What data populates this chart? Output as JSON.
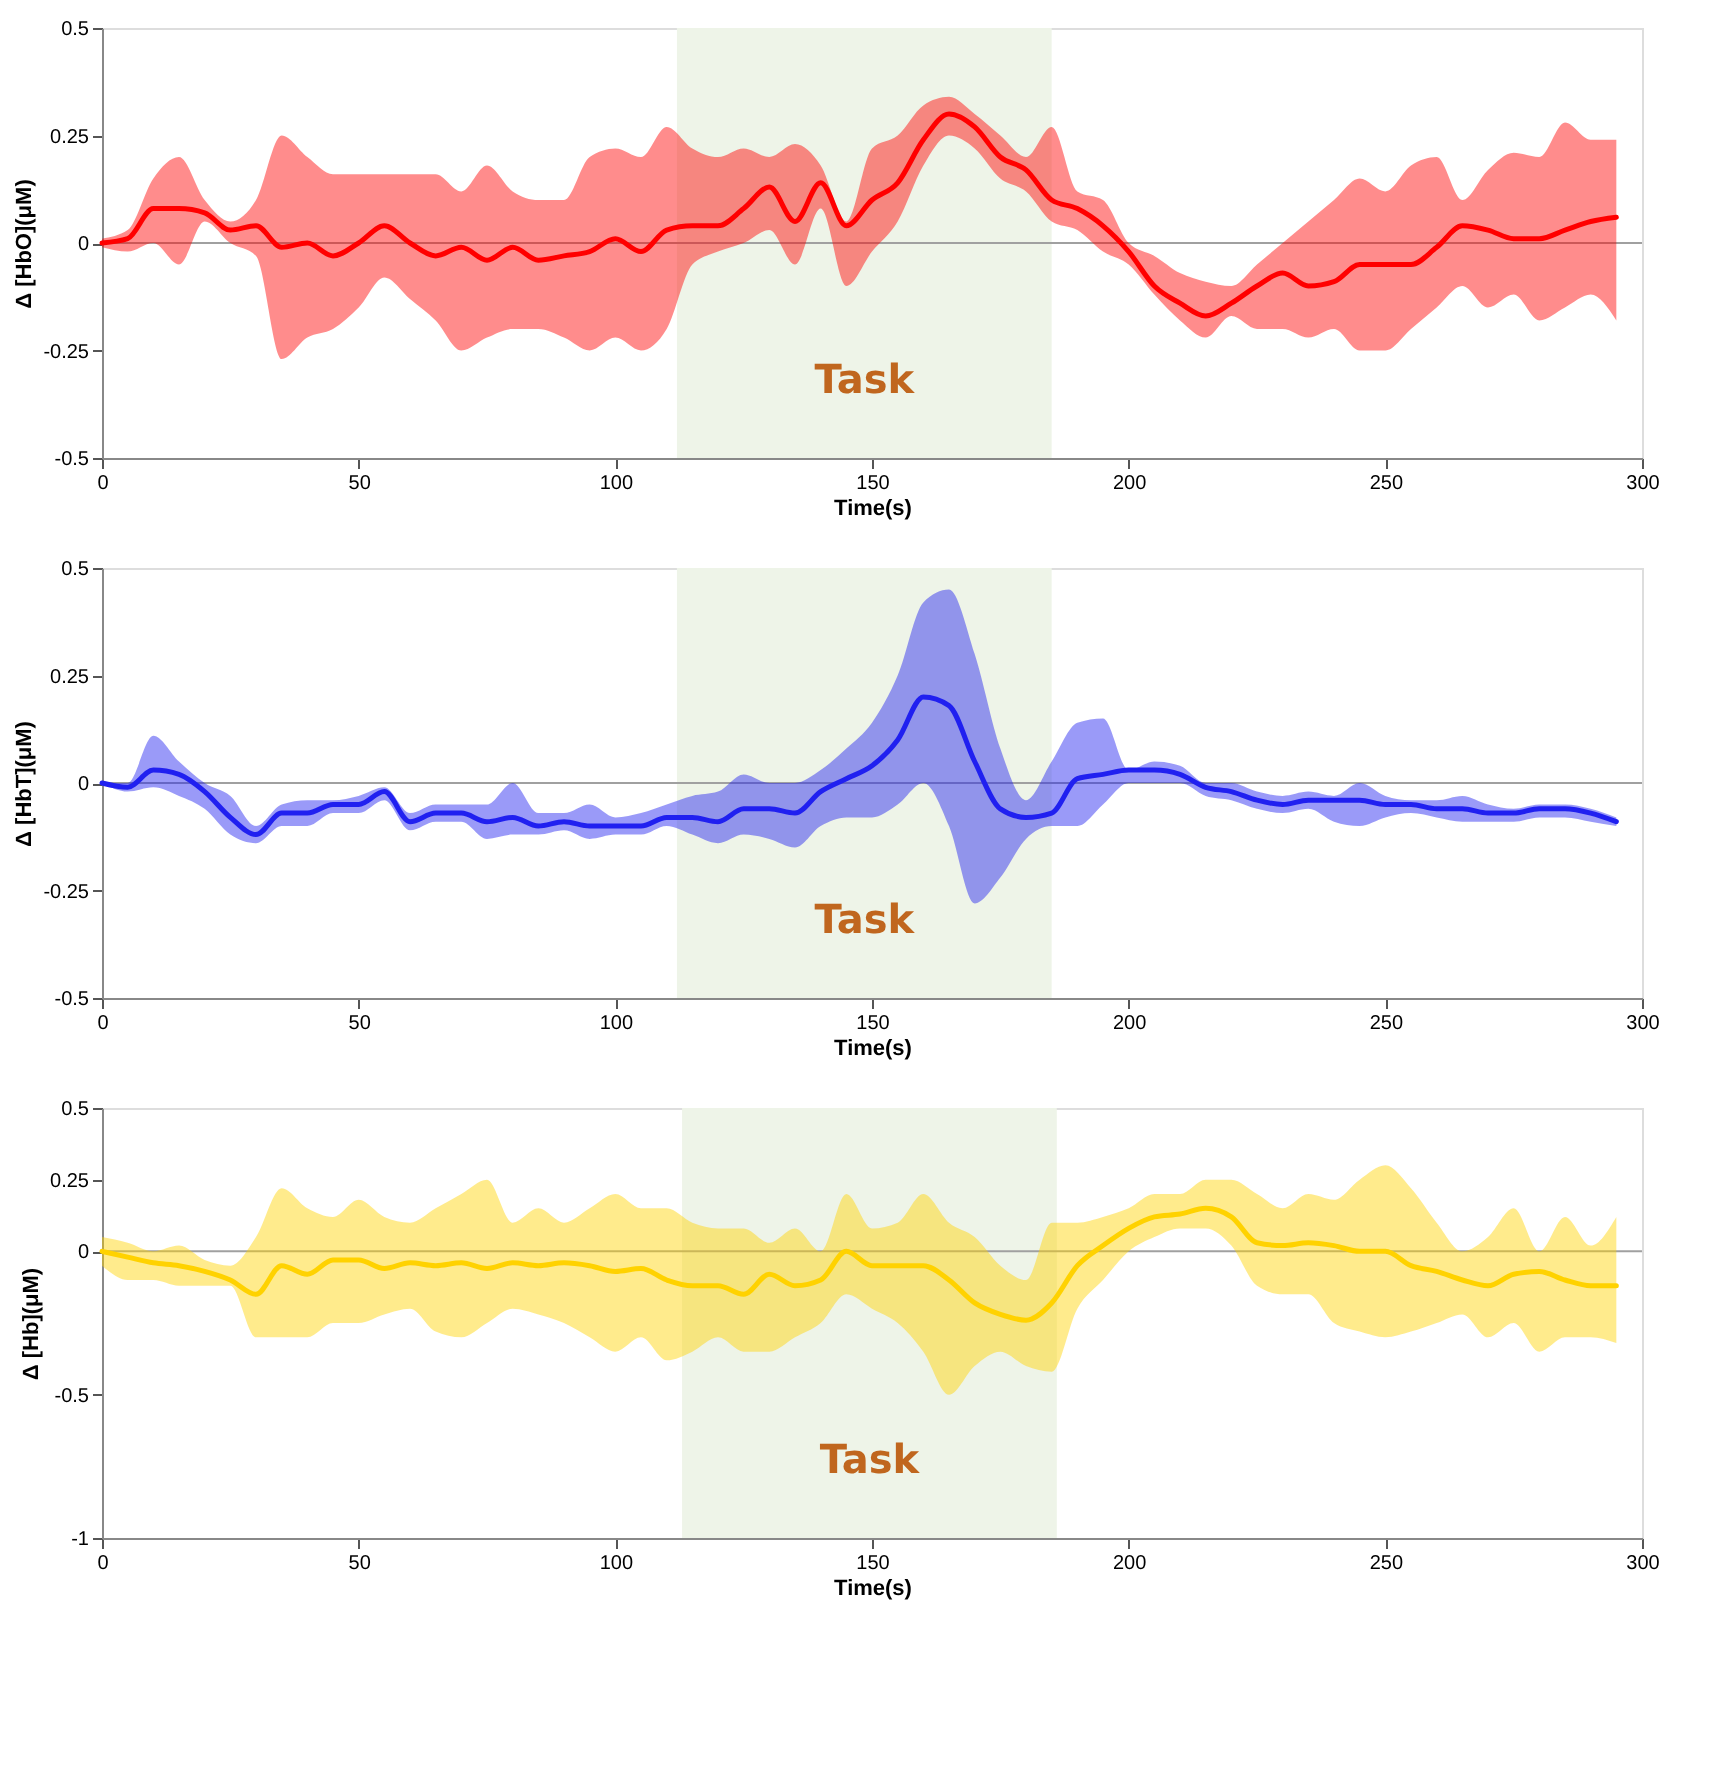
{
  "chart_data": [
    {
      "type": "line",
      "xlabel": "Time(s)",
      "ylabel": "Δ [HbO](μM)",
      "xlim": [
        0,
        300
      ],
      "xticks": [
        0,
        50,
        100,
        150,
        200,
        250,
        300
      ],
      "ylim": [
        -0.5,
        0.5
      ],
      "yticks": [
        -0.5,
        -0.25,
        0,
        0.25,
        0.5
      ],
      "grid": false,
      "line_style": "solid",
      "marker": "none",
      "x": [
        0,
        5,
        10,
        15,
        20,
        25,
        30,
        35,
        40,
        45,
        50,
        55,
        60,
        65,
        70,
        75,
        80,
        85,
        90,
        95,
        100,
        105,
        110,
        115,
        120,
        125,
        130,
        135,
        140,
        145,
        150,
        155,
        160,
        165,
        170,
        175,
        180,
        185,
        190,
        195,
        200,
        205,
        210,
        215,
        220,
        225,
        230,
        235,
        240,
        245,
        250,
        255,
        260,
        265,
        270,
        275,
        280,
        285,
        290,
        295
      ],
      "series": [
        {
          "color": "#ff0000",
          "values": [
            0,
            0.01,
            0.08,
            0.08,
            0.07,
            0.03,
            0.04,
            -0.01,
            0,
            -0.03,
            0,
            0.04,
            0,
            -0.03,
            -0.01,
            -0.04,
            -0.01,
            -0.04,
            -0.03,
            -0.02,
            0.01,
            -0.02,
            0.03,
            0.04,
            0.04,
            0.08,
            0.13,
            0.05,
            0.14,
            0.04,
            0.1,
            0.14,
            0.24,
            0.3,
            0.27,
            0.2,
            0.17,
            0.1,
            0.08,
            0.04,
            -0.02,
            -0.1,
            -0.14,
            -0.17,
            -0.14,
            -0.1,
            -0.07,
            -0.1,
            -0.09,
            -0.05,
            -0.05,
            -0.05,
            -0.01,
            0.04,
            0.03,
            0.01,
            0.01,
            0.03,
            0.05,
            0.06
          ],
          "upper": [
            0.01,
            0.03,
            0.15,
            0.2,
            0.1,
            0.05,
            0.1,
            0.25,
            0.2,
            0.16,
            0.16,
            0.16,
            0.16,
            0.16,
            0.12,
            0.18,
            0.12,
            0.1,
            0.1,
            0.2,
            0.22,
            0.2,
            0.27,
            0.22,
            0.2,
            0.22,
            0.2,
            0.23,
            0.18,
            0.05,
            0.22,
            0.25,
            0.32,
            0.34,
            0.3,
            0.25,
            0.2,
            0.27,
            0.12,
            0.1,
            0.0,
            -0.03,
            -0.07,
            -0.09,
            -0.1,
            -0.05,
            0.0,
            0.05,
            0.1,
            0.15,
            0.12,
            0.18,
            0.2,
            0.1,
            0.17,
            0.21,
            0.2,
            0.28,
            0.24,
            0.24
          ],
          "lower": [
            -0.01,
            -0.02,
            0.0,
            -0.05,
            0.05,
            0.0,
            -0.03,
            -0.27,
            -0.22,
            -0.2,
            -0.15,
            -0.08,
            -0.13,
            -0.18,
            -0.25,
            -0.22,
            -0.2,
            -0.2,
            -0.22,
            -0.25,
            -0.22,
            -0.25,
            -0.2,
            -0.05,
            -0.02,
            0.0,
            0.03,
            -0.05,
            0.08,
            -0.1,
            -0.02,
            0.05,
            0.18,
            0.25,
            0.22,
            0.15,
            0.12,
            0.05,
            0.03,
            -0.02,
            -0.05,
            -0.12,
            -0.18,
            -0.22,
            -0.17,
            -0.2,
            -0.2,
            -0.22,
            -0.2,
            -0.25,
            -0.25,
            -0.2,
            -0.15,
            -0.1,
            -0.15,
            -0.12,
            -0.18,
            -0.15,
            -0.12,
            -0.18
          ]
        }
      ],
      "ref_lines": [
        {
          "axis": "y",
          "value": 0,
          "color": "#a0a0a0"
        }
      ],
      "bands": [
        {
          "axis": "x",
          "from": 112,
          "to": 185,
          "label": "Task",
          "color": "#eef4e8"
        }
      ]
    },
    {
      "type": "line",
      "xlabel": "Time(s)",
      "ylabel": "Δ [HbT](μM)",
      "xlim": [
        0,
        300
      ],
      "xticks": [
        0,
        50,
        100,
        150,
        200,
        250,
        300
      ],
      "ylim": [
        -0.5,
        0.5
      ],
      "yticks": [
        -0.5,
        -0.25,
        0,
        0.25,
        0.5
      ],
      "grid": false,
      "line_style": "solid",
      "marker": "none",
      "x": [
        0,
        5,
        10,
        15,
        20,
        25,
        30,
        35,
        40,
        45,
        50,
        55,
        60,
        65,
        70,
        75,
        80,
        85,
        90,
        95,
        100,
        105,
        110,
        115,
        120,
        125,
        130,
        135,
        140,
        145,
        150,
        155,
        160,
        165,
        170,
        175,
        180,
        185,
        190,
        195,
        200,
        205,
        210,
        215,
        220,
        225,
        230,
        235,
        240,
        245,
        250,
        255,
        260,
        265,
        270,
        275,
        280,
        285,
        290,
        295
      ],
      "series": [
        {
          "color": "#2020f0",
          "values": [
            0,
            -0.01,
            0.03,
            0.02,
            -0.02,
            -0.08,
            -0.12,
            -0.07,
            -0.07,
            -0.05,
            -0.05,
            -0.02,
            -0.09,
            -0.07,
            -0.07,
            -0.09,
            -0.08,
            -0.1,
            -0.09,
            -0.1,
            -0.1,
            -0.1,
            -0.08,
            -0.08,
            -0.09,
            -0.06,
            -0.06,
            -0.07,
            -0.02,
            0.01,
            0.04,
            0.1,
            0.2,
            0.18,
            0.05,
            -0.06,
            -0.08,
            -0.07,
            0.01,
            0.02,
            0.03,
            0.03,
            0.02,
            -0.01,
            -0.02,
            -0.04,
            -0.05,
            -0.04,
            -0.04,
            -0.04,
            -0.05,
            -0.05,
            -0.06,
            -0.06,
            -0.07,
            -0.07,
            -0.06,
            -0.06,
            -0.07,
            -0.09
          ],
          "upper": [
            0,
            0.0,
            0.11,
            0.05,
            0.0,
            -0.03,
            -0.1,
            -0.05,
            -0.04,
            -0.04,
            -0.03,
            -0.01,
            -0.07,
            -0.05,
            -0.05,
            -0.05,
            0.0,
            -0.07,
            -0.07,
            -0.05,
            -0.08,
            -0.07,
            -0.05,
            -0.03,
            -0.02,
            0.02,
            0.0,
            0.0,
            0.03,
            0.08,
            0.14,
            0.25,
            0.42,
            0.45,
            0.3,
            0.08,
            -0.04,
            0.05,
            0.14,
            0.15,
            0.03,
            0.05,
            0.04,
            0.0,
            0.0,
            -0.02,
            -0.03,
            -0.02,
            -0.03,
            0.0,
            -0.03,
            -0.04,
            -0.04,
            -0.03,
            -0.05,
            -0.06,
            -0.05,
            -0.05,
            -0.06,
            -0.08
          ],
          "lower": [
            0,
            -0.02,
            -0.01,
            -0.03,
            -0.06,
            -0.12,
            -0.14,
            -0.1,
            -0.1,
            -0.07,
            -0.07,
            -0.04,
            -0.11,
            -0.09,
            -0.09,
            -0.13,
            -0.12,
            -0.12,
            -0.11,
            -0.13,
            -0.12,
            -0.12,
            -0.1,
            -0.12,
            -0.14,
            -0.12,
            -0.13,
            -0.15,
            -0.1,
            -0.08,
            -0.08,
            -0.05,
            0.0,
            -0.1,
            -0.28,
            -0.22,
            -0.13,
            -0.1,
            -0.1,
            -0.05,
            0.0,
            0.0,
            0.0,
            -0.03,
            -0.04,
            -0.06,
            -0.07,
            -0.06,
            -0.09,
            -0.1,
            -0.08,
            -0.07,
            -0.08,
            -0.09,
            -0.09,
            -0.09,
            -0.08,
            -0.08,
            -0.09,
            -0.1
          ]
        }
      ],
      "ref_lines": [
        {
          "axis": "y",
          "value": 0,
          "color": "#a0a0a0"
        }
      ],
      "bands": [
        {
          "axis": "x",
          "from": 112,
          "to": 185,
          "label": "Task",
          "color": "#eef4e8"
        }
      ]
    },
    {
      "type": "line",
      "xlabel": "Time(s)",
      "ylabel": "Δ [Hb](μM)",
      "xlim": [
        0,
        300
      ],
      "xticks": [
        0,
        50,
        100,
        150,
        200,
        250,
        300
      ],
      "ylim": [
        -1,
        0.5
      ],
      "yticks": [
        -1,
        -0.5,
        0,
        0.25,
        0.5
      ],
      "grid": false,
      "line_style": "solid",
      "marker": "none",
      "x": [
        0,
        5,
        10,
        15,
        20,
        25,
        30,
        35,
        40,
        45,
        50,
        55,
        60,
        65,
        70,
        75,
        80,
        85,
        90,
        95,
        100,
        105,
        110,
        115,
        120,
        125,
        130,
        135,
        140,
        145,
        150,
        155,
        160,
        165,
        170,
        175,
        180,
        185,
        190,
        195,
        200,
        205,
        210,
        215,
        220,
        225,
        230,
        235,
        240,
        245,
        250,
        255,
        260,
        265,
        270,
        275,
        280,
        285,
        290,
        295
      ],
      "series": [
        {
          "color": "#ffd200",
          "values": [
            0,
            -0.02,
            -0.04,
            -0.05,
            -0.07,
            -0.1,
            -0.15,
            -0.05,
            -0.08,
            -0.03,
            -0.03,
            -0.06,
            -0.04,
            -0.05,
            -0.04,
            -0.06,
            -0.04,
            -0.05,
            -0.04,
            -0.05,
            -0.07,
            -0.06,
            -0.1,
            -0.12,
            -0.12,
            -0.15,
            -0.08,
            -0.12,
            -0.1,
            0.0,
            -0.05,
            -0.05,
            -0.05,
            -0.1,
            -0.18,
            -0.22,
            -0.24,
            -0.18,
            -0.05,
            0.02,
            0.08,
            0.12,
            0.13,
            0.15,
            0.12,
            0.03,
            0.02,
            0.03,
            0.02,
            0.0,
            0.0,
            -0.05,
            -0.07,
            -0.1,
            -0.12,
            -0.08,
            -0.07,
            -0.1,
            -0.12,
            -0.12
          ],
          "upper": [
            0.05,
            0.03,
            0.0,
            0.02,
            -0.03,
            -0.05,
            0.05,
            0.22,
            0.15,
            0.12,
            0.18,
            0.12,
            0.1,
            0.15,
            0.2,
            0.25,
            0.1,
            0.15,
            0.1,
            0.15,
            0.2,
            0.15,
            0.15,
            0.1,
            0.08,
            0.08,
            0.03,
            0.08,
            0.0,
            0.2,
            0.08,
            0.1,
            0.2,
            0.1,
            0.05,
            -0.05,
            -0.1,
            0.1,
            0.1,
            0.12,
            0.15,
            0.2,
            0.2,
            0.25,
            0.25,
            0.2,
            0.15,
            0.2,
            0.18,
            0.25,
            0.3,
            0.22,
            0.1,
            0.0,
            0.05,
            0.15,
            0.0,
            0.12,
            0.02,
            0.12
          ],
          "lower": [
            -0.05,
            -0.1,
            -0.1,
            -0.12,
            -0.12,
            -0.12,
            -0.3,
            -0.3,
            -0.3,
            -0.25,
            -0.25,
            -0.22,
            -0.2,
            -0.28,
            -0.3,
            -0.25,
            -0.2,
            -0.22,
            -0.25,
            -0.3,
            -0.35,
            -0.3,
            -0.38,
            -0.35,
            -0.3,
            -0.35,
            -0.35,
            -0.3,
            -0.25,
            -0.15,
            -0.2,
            -0.25,
            -0.35,
            -0.5,
            -0.4,
            -0.35,
            -0.4,
            -0.42,
            -0.2,
            -0.1,
            0.0,
            0.05,
            0.08,
            0.08,
            0.02,
            -0.12,
            -0.15,
            -0.15,
            -0.25,
            -0.28,
            -0.3,
            -0.28,
            -0.25,
            -0.22,
            -0.3,
            -0.25,
            -0.35,
            -0.3,
            -0.3,
            -0.32
          ]
        }
      ],
      "ref_lines": [
        {
          "axis": "y",
          "value": 0,
          "color": "#a0a0a0"
        }
      ],
      "bands": [
        {
          "axis": "x",
          "from": 113,
          "to": 186,
          "label": "Task",
          "color": "#eef4e8"
        }
      ]
    }
  ]
}
